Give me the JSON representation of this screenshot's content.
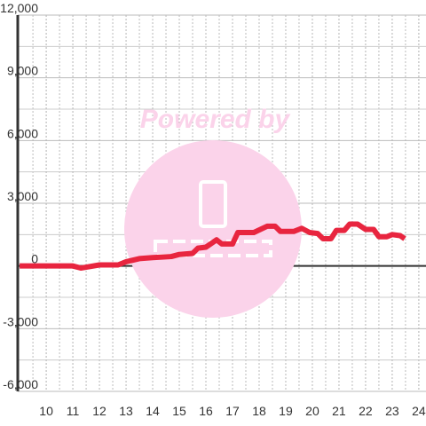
{
  "chart_data": {
    "type": "line",
    "watermark": "Powered by",
    "x": [
      9,
      11,
      11.3,
      12,
      12.3,
      12.7,
      13,
      13.5,
      14,
      14.7,
      15,
      15.5,
      15.7,
      16,
      16.4,
      16.6,
      17,
      17.2,
      17.8,
      18.3,
      18.6,
      18.8,
      19.3,
      19.6,
      19.9,
      20.2,
      20.4,
      20.7,
      20.9,
      21.2,
      21.4,
      21.7,
      22,
      22.3,
      22.5,
      22.8,
      23,
      23.3,
      23.47
    ],
    "series": [
      {
        "color": "#e8253f",
        "values": [
          0,
          0,
          -100,
          50,
          50,
          50,
          200,
          350,
          400,
          450,
          550,
          600,
          850,
          900,
          1250,
          1050,
          1050,
          1600,
          1600,
          1900,
          1900,
          1650,
          1650,
          1800,
          1600,
          1550,
          1300,
          1300,
          1700,
          1700,
          2000,
          2000,
          1750,
          1750,
          1400,
          1400,
          1500,
          1450,
          1300
        ]
      }
    ],
    "xlim": [
      8.93,
      24.27
    ],
    "xticks": [
      10,
      11,
      12,
      13,
      14,
      15,
      16,
      17,
      18,
      19,
      20,
      21,
      22,
      23,
      24
    ],
    "ylim": [
      -6000,
      12000
    ],
    "yticks": [
      {
        "value": -6000,
        "label": "-6,000"
      },
      {
        "value": -3000,
        "label": "-3,000"
      },
      0,
      {
        "value": 3000,
        "label": "3,000"
      },
      {
        "value": 6000,
        "label": "6,000"
      },
      {
        "value": 9000,
        "label": "9,000"
      },
      {
        "value": 12000,
        "label": "12,000"
      }
    ],
    "grid": true
  }
}
